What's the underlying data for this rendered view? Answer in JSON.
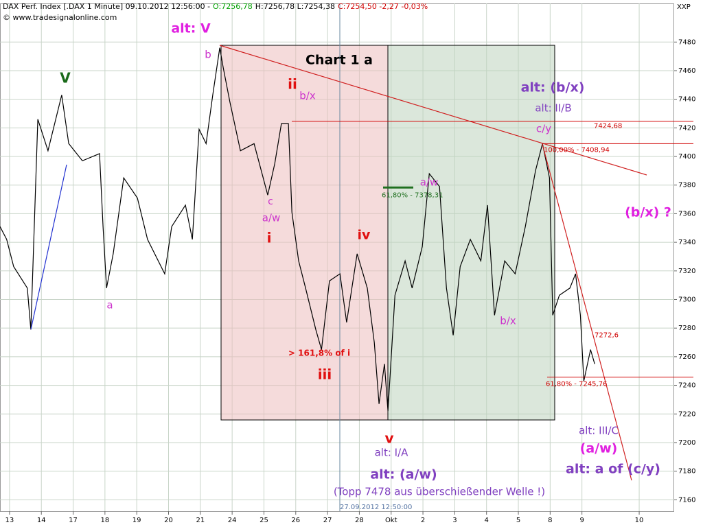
{
  "chart_data": {
    "type": "line",
    "title_parts": [
      {
        "text": "DAX Perf. Index [.DAX 1 Minute] 09.10.2012 12:56:00 -",
        "color": "#000000"
      },
      {
        "text": "O:7256,78",
        "color": "#00a000"
      },
      {
        "text": "H:7256,78 L:7254,38",
        "color": "#000000"
      },
      {
        "text": "C:7254,50 -2,27 -0,03%",
        "color": "#d00000"
      }
    ],
    "source": "© www.tradesignalonline.com",
    "axis_label": "XXP",
    "cursor_label": "27.09.2012 12:50:00",
    "color": "#000000",
    "x": [
      -0.3,
      -0.09,
      0.13,
      0.56,
      0.67,
      0.89,
      1.21,
      1.64,
      1.86,
      2.29,
      2.83,
      2.94,
      3.05,
      3.26,
      3.59,
      4.02,
      4.34,
      4.88,
      5.1,
      5.53,
      5.75,
      5.96,
      6.18,
      6.39,
      6.61,
      6.72,
      6.93,
      7.26,
      7.69,
      8.12,
      8.34,
      8.55,
      8.77,
      8.88,
      9.09,
      9.31,
      9.63,
      9.81,
      10.06,
      10.39,
      10.6,
      10.93,
      11.25,
      11.47,
      11.62,
      11.79,
      11.9,
      12.12,
      12.44,
      12.66,
      12.98,
      13.2,
      13.52,
      13.74,
      13.95,
      14.17,
      14.49,
      14.82,
      15.03,
      15.25,
      15.57,
      15.9,
      16.22,
      16.54,
      16.76,
      16.98,
      17.08,
      17.29,
      17.62,
      17.8,
      17.95,
      18.06,
      18.27,
      18.4
    ],
    "values": [
      7351,
      7342,
      7323,
      7308,
      7279,
      7426,
      7404,
      7443,
      7409,
      7397,
      7402,
      7351,
      7308,
      7332,
      7385,
      7371,
      7342,
      7318,
      7351,
      7366,
      7342,
      7419,
      7409,
      7443,
      7476,
      7462,
      7438,
      7404,
      7409,
      7373,
      7395,
      7423,
      7423,
      7361,
      7327,
      7308,
      7279,
      7265,
      7313,
      7318,
      7284,
      7332,
      7308,
      7270,
      7227,
      7255,
      7222,
      7303,
      7327,
      7308,
      7337,
      7388,
      7379,
      7308,
      7275,
      7323,
      7342,
      7327,
      7366,
      7289,
      7327,
      7318,
      7351,
      7390,
      7409,
      7385,
      7289,
      7303,
      7308,
      7318,
      7289,
      7243,
      7265,
      7255
    ],
    "xlim": [
      -0.3,
      20.9
    ],
    "ylim": [
      7152,
      7507
    ],
    "xticks": [
      {
        "value": 0,
        "label": "13"
      },
      {
        "value": 1,
        "label": "14"
      },
      {
        "value": 2,
        "label": "17"
      },
      {
        "value": 3,
        "label": "18"
      },
      {
        "value": 4,
        "label": "19"
      },
      {
        "value": 5,
        "label": "20"
      },
      {
        "value": 6,
        "label": "21"
      },
      {
        "value": 7,
        "label": "24"
      },
      {
        "value": 8,
        "label": "25"
      },
      {
        "value": 9,
        "label": "26"
      },
      {
        "value": 10,
        "label": "27"
      },
      {
        "value": 11,
        "label": "28"
      },
      {
        "value": 12,
        "label": "Okt"
      },
      {
        "value": 13,
        "label": "2"
      },
      {
        "value": 14,
        "label": "3"
      },
      {
        "value": 15,
        "label": "4"
      },
      {
        "value": 16,
        "label": "5"
      },
      {
        "value": 17,
        "label": "8"
      },
      {
        "value": 18,
        "label": "9"
      },
      {
        "value": 19.8,
        "label": "10"
      }
    ],
    "yticks": [
      7160,
      7180,
      7200,
      7220,
      7240,
      7260,
      7280,
      7300,
      7320,
      7340,
      7360,
      7380,
      7400,
      7420,
      7440,
      7460,
      7480
    ],
    "grid": true,
    "levels": [
      {
        "value": 7424.68,
        "label": "7424,68",
        "color": "#d00000"
      },
      {
        "value": 7408.94,
        "label": "100,00% - 7408,94",
        "color": "#d00000"
      },
      {
        "value": 7378.31,
        "label": "61,80% - 7378,31",
        "color": "#207020"
      },
      {
        "value": 7272.6,
        "label": "7272,6",
        "color": "#d00000"
      },
      {
        "value": 7245.76,
        "label": "61,80% - 7245,76",
        "color": "#d00000"
      }
    ],
    "annotations": [
      {
        "text": "alt: V",
        "color": "#e020e0"
      },
      {
        "text": "V",
        "color": "#1a6a1a"
      },
      {
        "text": "b",
        "color": "#cc33cc"
      },
      {
        "text": "ii",
        "color": "#e01010"
      },
      {
        "text": "b/x",
        "color": "#cc33cc"
      },
      {
        "text": "Chart 1 a",
        "color": "#000000"
      },
      {
        "text": "alt: (b/x)",
        "color": "#8040c0"
      },
      {
        "text": "alt: II/B",
        "color": "#8040c0"
      },
      {
        "text": "c/y",
        "color": "#cc33cc"
      },
      {
        "text": "a/w",
        "color": "#cc33cc"
      },
      {
        "text": "c",
        "color": "#cc33cc"
      },
      {
        "text": "a/w",
        "color": "#cc33cc"
      },
      {
        "text": "(b/x) ?",
        "color": "#e020e0"
      },
      {
        "text": "i",
        "color": "#e01010"
      },
      {
        "text": "iv",
        "color": "#e01010"
      },
      {
        "text": "a",
        "color": "#cc33cc"
      },
      {
        "text": "b/x",
        "color": "#cc33cc"
      },
      {
        "text": "> 161,8% of i",
        "color": "#e01010"
      },
      {
        "text": "iii",
        "color": "#e01010"
      },
      {
        "text": "v",
        "color": "#e01010"
      },
      {
        "text": "alt: I/A",
        "color": "#8040c0"
      },
      {
        "text": "alt: III/C",
        "color": "#8040c0"
      },
      {
        "text": "(a/w)",
        "color": "#e020e0"
      },
      {
        "text": "alt: a of (c/y)",
        "color": "#8040c0"
      },
      {
        "text": "alt: (a/w)",
        "color": "#8040c0"
      },
      {
        "text": "(Topp 7478 aus überschießender Welle !)",
        "color": "#8040c0"
      }
    ]
  }
}
